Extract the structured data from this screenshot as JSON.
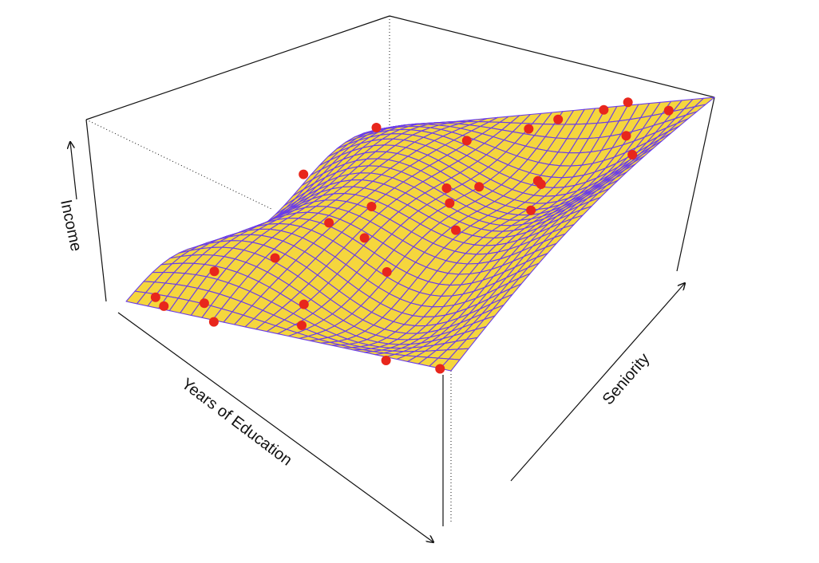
{
  "chart_data": {
    "type": "surface3d",
    "xlabel": "Years of Education",
    "ylabel": "Seniority",
    "zlabel": "Income",
    "surface_color": "#f5d63d",
    "mesh_color": "#6a3de8",
    "point_color": "#e8261c",
    "education": [
      0.05,
      0.1,
      0.2,
      0.27,
      0.15,
      0.28,
      0.45,
      0.5,
      0.8,
      0.95,
      0.1,
      0.0,
      0.35,
      0.5,
      0.55,
      0.6,
      0.7,
      0.75,
      0.8,
      0.4,
      0.55,
      0.6,
      0.7,
      0.75,
      0.85,
      0.9,
      0.95,
      0.45,
      0.3,
      0.6,
      0.65
    ],
    "seniority": [
      0.05,
      0.02,
      0.05,
      0.0,
      0.15,
      0.22,
      0.12,
      0.05,
      0.0,
      0.02,
      0.55,
      0.95,
      0.5,
      0.6,
      0.55,
      0.6,
      0.7,
      0.65,
      0.55,
      0.8,
      0.85,
      0.9,
      0.95,
      0.98,
      0.85,
      0.95,
      0.75,
      0.35,
      0.4,
      0.25,
      0.45
    ],
    "income": [
      26,
      22,
      30,
      18,
      55,
      72,
      38,
      25,
      12,
      10,
      130,
      145,
      105,
      120,
      110,
      125,
      120,
      125,
      110,
      150,
      160,
      165,
      170,
      175,
      155,
      170,
      150,
      90,
      95,
      70,
      95
    ]
  }
}
